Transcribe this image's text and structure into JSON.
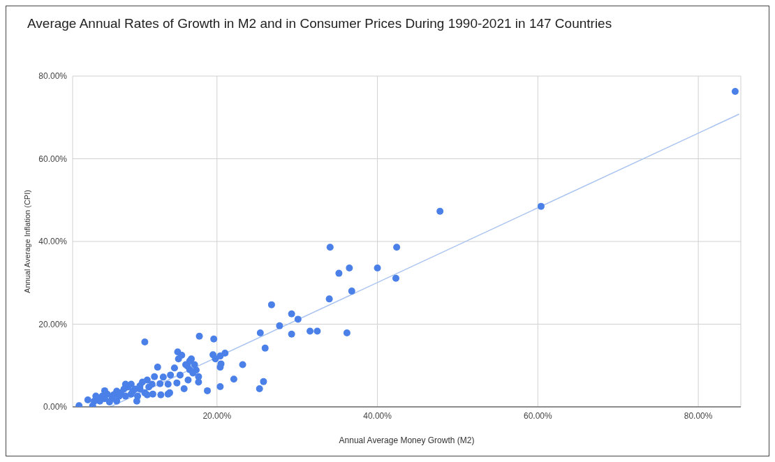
{
  "chart_data": {
    "type": "scatter",
    "title": "Average Annual Rates of Growth in M2 and in Consumer Prices During 1990-2021 in 147 Countries",
    "xlabel": "Annual Average Money Growth (M2)",
    "ylabel": "Annual Average Inflation (CPI)",
    "xlim": [
      2,
      85.3
    ],
    "xticks": [
      {
        "value": 20,
        "label": "20.00%"
      },
      {
        "value": 40,
        "label": "40.00%"
      },
      {
        "value": 60,
        "label": "60.00%"
      },
      {
        "value": 80,
        "label": "80.00%"
      }
    ],
    "ylim": [
      0,
      80
    ],
    "yticks": [
      {
        "value": 0,
        "label": "0.00%"
      },
      {
        "value": 20,
        "label": "20.00%"
      },
      {
        "value": 40,
        "label": "40.00%"
      },
      {
        "value": 60,
        "label": "60.00%"
      },
      {
        "value": 80,
        "label": "80.00%"
      }
    ],
    "grid": true,
    "series": [
      {
        "marker": "circle",
        "color": "#4a80e8",
        "x": [
          84.6,
          60.4,
          47.8,
          34.1,
          42.4,
          36.5,
          35.2,
          40.0,
          42.3,
          36.8,
          34.0,
          26.8,
          29.3,
          30.1,
          27.8,
          25.4,
          29.3,
          31.6,
          32.5,
          36.2,
          26.0,
          19.6,
          19.5,
          19.8,
          20.4,
          21.0,
          20.5,
          20.4,
          23.2,
          22.1,
          20.4,
          25.8,
          25.3,
          2.8,
          11.0,
          17.8,
          15.1,
          12.6,
          15.2,
          15.6,
          16.8,
          14.7,
          16.3,
          16.6,
          17.4,
          17.0,
          14.2,
          13.3,
          12.2,
          17.7,
          17.7,
          16.4,
          15.9,
          15.0,
          13.9,
          18.8,
          14.1,
          12.9,
          11.3,
          10.7,
          11.5,
          12.0,
          13.0,
          11.0,
          10.4,
          10.1,
          10.0,
          9.5,
          8.9,
          8.6,
          9.3,
          8.4,
          8.0,
          7.8,
          7.5,
          7.1,
          6.9,
          6.3,
          6.0,
          6.0,
          5.7,
          5.4,
          4.9,
          4.7,
          4.5,
          3.9,
          6.6,
          8.6,
          9.3,
          9.8,
          7.5,
          11.3,
          13.9,
          11.9,
          10.4,
          16.6,
          16.1,
          17.2,
          15.4
        ],
        "values": [
          76.3,
          48.5,
          47.3,
          38.6,
          38.6,
          33.6,
          32.3,
          33.6,
          31.1,
          28.0,
          26.1,
          24.7,
          22.5,
          21.2,
          19.6,
          17.9,
          17.6,
          18.3,
          18.3,
          17.9,
          14.2,
          16.4,
          12.6,
          11.6,
          12.3,
          13.0,
          10.4,
          9.6,
          10.2,
          6.7,
          4.9,
          6.1,
          4.4,
          0.3,
          15.7,
          17.1,
          13.3,
          9.6,
          11.6,
          12.5,
          11.6,
          9.4,
          9.9,
          9.0,
          8.9,
          8.2,
          7.7,
          7.2,
          7.3,
          7.3,
          6.0,
          6.5,
          4.4,
          5.8,
          5.5,
          3.9,
          3.4,
          5.6,
          6.5,
          6.0,
          4.8,
          3.1,
          2.9,
          3.4,
          4.3,
          2.6,
          1.4,
          3.8,
          4.8,
          5.5,
          5.5,
          4.3,
          3.4,
          2.6,
          3.8,
          2.9,
          2.0,
          3.1,
          3.9,
          2.0,
          2.6,
          1.4,
          2.6,
          1.4,
          0.3,
          1.7,
          1.2,
          2.6,
          3.1,
          4.3,
          1.4,
          2.9,
          3.1,
          5.5,
          5.1,
          11.1,
          10.2,
          10.2,
          7.7
        ]
      },
      {
        "type": "line",
        "color": "#a9c3f0",
        "x": [
          6.7,
          85.1
        ],
        "values": [
          0,
          70.8
        ]
      }
    ]
  }
}
